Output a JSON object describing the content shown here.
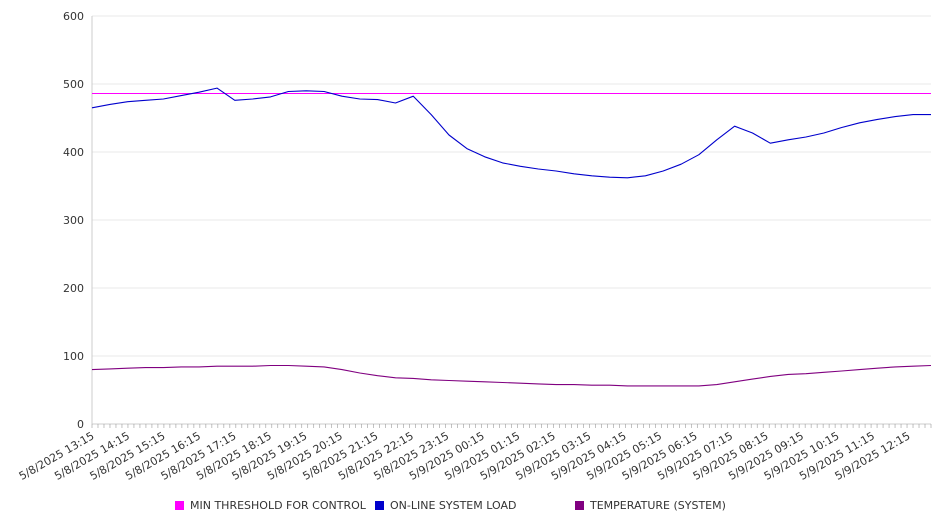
{
  "chart_data": {
    "type": "line",
    "title": "",
    "xlabel": "",
    "ylabel": "",
    "ylim": [
      0,
      600
    ],
    "y_ticks": [
      "0",
      "100",
      "200",
      "300",
      "400",
      "500",
      "600"
    ],
    "x_tick_labels": [
      "5/8/2025 13:15",
      "5/8/2025 14:15",
      "5/8/2025 15:15",
      "5/8/2025 16:15",
      "5/8/2025 17:15",
      "5/8/2025 18:15",
      "5/8/2025 19:15",
      "5/8/2025 20:15",
      "5/8/2025 21:15",
      "5/8/2025 22:15",
      "5/8/2025 23:15",
      "5/9/2025 00:15",
      "5/9/2025 01:15",
      "5/9/2025 02:15",
      "5/9/2025 03:15",
      "5/9/2025 04:15",
      "5/9/2025 05:15",
      "5/9/2025 06:15",
      "5/9/2025 07:15",
      "5/9/2025 08:15",
      "5/9/2025 09:15",
      "5/9/2025 10:15",
      "5/9/2025 11:15",
      "5/9/2025 12:15"
    ],
    "grid": true,
    "legend_position": "bottom",
    "x": [
      "5/8/2025 13:15",
      "5/8/2025 13:45",
      "5/8/2025 14:15",
      "5/8/2025 14:45",
      "5/8/2025 15:15",
      "5/8/2025 15:45",
      "5/8/2025 16:15",
      "5/8/2025 16:45",
      "5/8/2025 17:15",
      "5/8/2025 17:45",
      "5/8/2025 18:15",
      "5/8/2025 18:45",
      "5/8/2025 19:15",
      "5/8/2025 19:45",
      "5/8/2025 20:15",
      "5/8/2025 20:45",
      "5/8/2025 21:15",
      "5/8/2025 21:45",
      "5/8/2025 22:15",
      "5/8/2025 22:45",
      "5/8/2025 23:15",
      "5/8/2025 23:45",
      "5/9/2025 00:15",
      "5/9/2025 00:45",
      "5/9/2025 01:15",
      "5/9/2025 01:45",
      "5/9/2025 02:15",
      "5/9/2025 02:45",
      "5/9/2025 03:15",
      "5/9/2025 03:45",
      "5/9/2025 04:15",
      "5/9/2025 04:45",
      "5/9/2025 05:15",
      "5/9/2025 05:45",
      "5/9/2025 06:15",
      "5/9/2025 06:45",
      "5/9/2025 07:15",
      "5/9/2025 07:45",
      "5/9/2025 08:15",
      "5/9/2025 08:45",
      "5/9/2025 09:15",
      "5/9/2025 09:45",
      "5/9/2025 10:15",
      "5/9/2025 10:45",
      "5/9/2025 11:15",
      "5/9/2025 11:45",
      "5/9/2025 12:15",
      "5/9/2025 12:45"
    ],
    "series": [
      {
        "name": "MIN THRESHOLD FOR CONTROL",
        "color": "#ff00ff",
        "values": [
          486,
          486,
          486,
          486,
          486,
          486,
          486,
          486,
          486,
          486,
          486,
          486,
          486,
          486,
          486,
          486,
          486,
          486,
          486,
          486,
          486,
          486,
          486,
          486,
          486,
          486,
          486,
          486,
          486,
          486,
          486,
          486,
          486,
          486,
          486,
          486,
          486,
          486,
          486,
          486,
          486,
          486,
          486,
          486,
          486,
          486,
          486,
          486
        ]
      },
      {
        "name": "ON-LINE SYSTEM LOAD",
        "color": "#0000cc",
        "values": [
          465,
          470,
          474,
          476,
          478,
          483,
          488,
          494,
          476,
          478,
          481,
          489,
          490,
          489,
          482,
          478,
          477,
          472,
          482,
          455,
          425,
          405,
          393,
          384,
          379,
          375,
          372,
          368,
          365,
          363,
          362,
          365,
          372,
          382,
          396,
          418,
          438,
          428,
          413,
          418,
          422,
          428,
          436,
          443,
          448,
          452,
          455,
          455
        ]
      },
      {
        "name": "TEMPERATURE (SYSTEM)",
        "color": "#800080",
        "values": [
          80,
          81,
          82,
          83,
          83,
          84,
          84,
          85,
          85,
          85,
          86,
          86,
          85,
          84,
          80,
          75,
          71,
          68,
          67,
          65,
          64,
          63,
          62,
          61,
          60,
          59,
          58,
          58,
          57,
          57,
          56,
          56,
          56,
          56,
          56,
          58,
          62,
          66,
          70,
          73,
          74,
          76,
          78,
          80,
          82,
          84,
          85,
          86
        ]
      }
    ]
  }
}
